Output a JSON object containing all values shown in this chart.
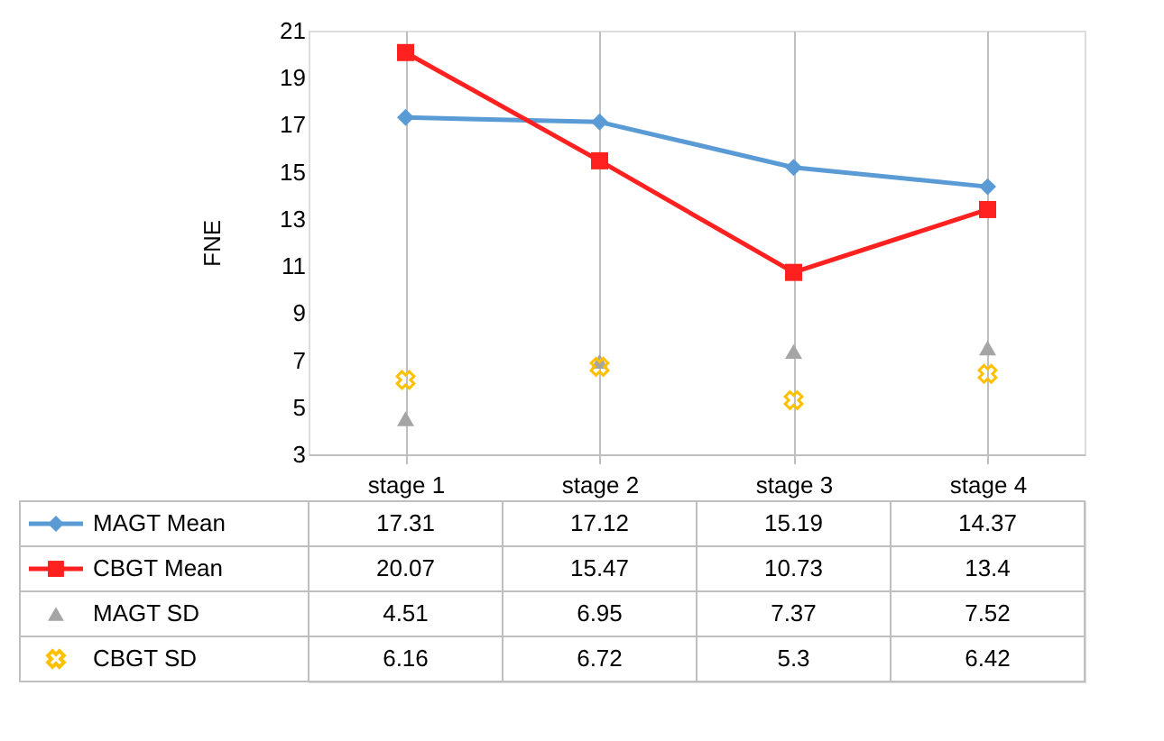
{
  "chart_data": {
    "type": "line",
    "ylabel": "FNE",
    "categories": [
      "stage 1",
      "stage 2",
      "stage 3",
      "stage 4"
    ],
    "series": [
      {
        "name": "MAGT Mean",
        "color": "#5b9bd5",
        "marker": "diamond",
        "values": [
          17.31,
          17.12,
          15.19,
          14.37
        ]
      },
      {
        "name": "CBGT Mean",
        "color": "#ff2020",
        "marker": "square",
        "values": [
          20.07,
          15.47,
          10.73,
          13.4
        ]
      },
      {
        "name": "MAGT SD",
        "color": "#a5a5a5",
        "type": "scatter",
        "marker": "triangle",
        "values": [
          4.51,
          6.95,
          7.37,
          7.52
        ]
      },
      {
        "name": "CBGT SD",
        "color": "#ffc000",
        "type": "scatter",
        "marker": "cross",
        "values": [
          6.16,
          6.72,
          5.3,
          6.42
        ]
      }
    ],
    "ylim": [
      3,
      21
    ],
    "yticks": [
      3,
      5,
      7,
      9,
      11,
      13,
      15,
      17,
      19,
      21
    ],
    "data_labels": true,
    "legend": "bottom",
    "grid": "x"
  }
}
